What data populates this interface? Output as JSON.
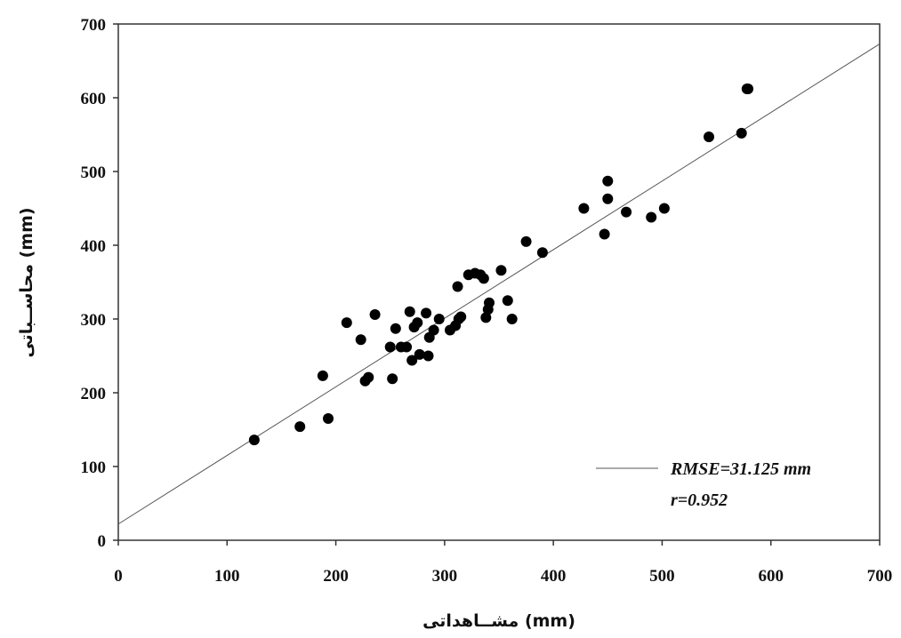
{
  "chart_data": {
    "type": "scatter",
    "title": "",
    "xlabel": "مشــاهداتی (mm)",
    "ylabel": "محاســباتی (mm)",
    "xlim": [
      0,
      700
    ],
    "ylim": [
      0,
      700
    ],
    "xticks": [
      0,
      100,
      200,
      300,
      400,
      500,
      600,
      700
    ],
    "yticks": [
      0,
      100,
      200,
      300,
      400,
      500,
      600,
      700
    ],
    "grid": false,
    "legend_position": "bottom-right",
    "colors": {
      "marker": "#000000",
      "line": "#555555",
      "axis": "#333333"
    },
    "series": [
      {
        "kind": "points",
        "points": [
          [
            125,
            136
          ],
          [
            167,
            154
          ],
          [
            188,
            223
          ],
          [
            193,
            165
          ],
          [
            210,
            295
          ],
          [
            223,
            272
          ],
          [
            227,
            216
          ],
          [
            230,
            221
          ],
          [
            236,
            306
          ],
          [
            250,
            262
          ],
          [
            252,
            219
          ],
          [
            255,
            287
          ],
          [
            260,
            262
          ],
          [
            265,
            262
          ],
          [
            268,
            310
          ],
          [
            270,
            244
          ],
          [
            272,
            289
          ],
          [
            275,
            295
          ],
          [
            277,
            252
          ],
          [
            283,
            308
          ],
          [
            285,
            250
          ],
          [
            286,
            275
          ],
          [
            290,
            285
          ],
          [
            295,
            300
          ],
          [
            305,
            285
          ],
          [
            310,
            291
          ],
          [
            312,
            344
          ],
          [
            313,
            300
          ],
          [
            315,
            303
          ],
          [
            322,
            360
          ],
          [
            328,
            362
          ],
          [
            333,
            360
          ],
          [
            336,
            355
          ],
          [
            338,
            302
          ],
          [
            340,
            313
          ],
          [
            341,
            322
          ],
          [
            352,
            366
          ],
          [
            358,
            325
          ],
          [
            362,
            300
          ],
          [
            375,
            405
          ],
          [
            390,
            390
          ],
          [
            428,
            450
          ],
          [
            447,
            415
          ],
          [
            450,
            487
          ],
          [
            450,
            463
          ],
          [
            467,
            445
          ],
          [
            490,
            438
          ],
          [
            502,
            450
          ],
          [
            543,
            547
          ],
          [
            573,
            552
          ],
          [
            578,
            612
          ],
          [
            579,
            612
          ]
        ]
      },
      {
        "kind": "fit-line",
        "line": {
          "intercept": 22,
          "slope": 0.93
        }
      }
    ],
    "legend": {
      "text": "RMSE=31.125 mm",
      "sub_text": "r=0.952"
    }
  }
}
